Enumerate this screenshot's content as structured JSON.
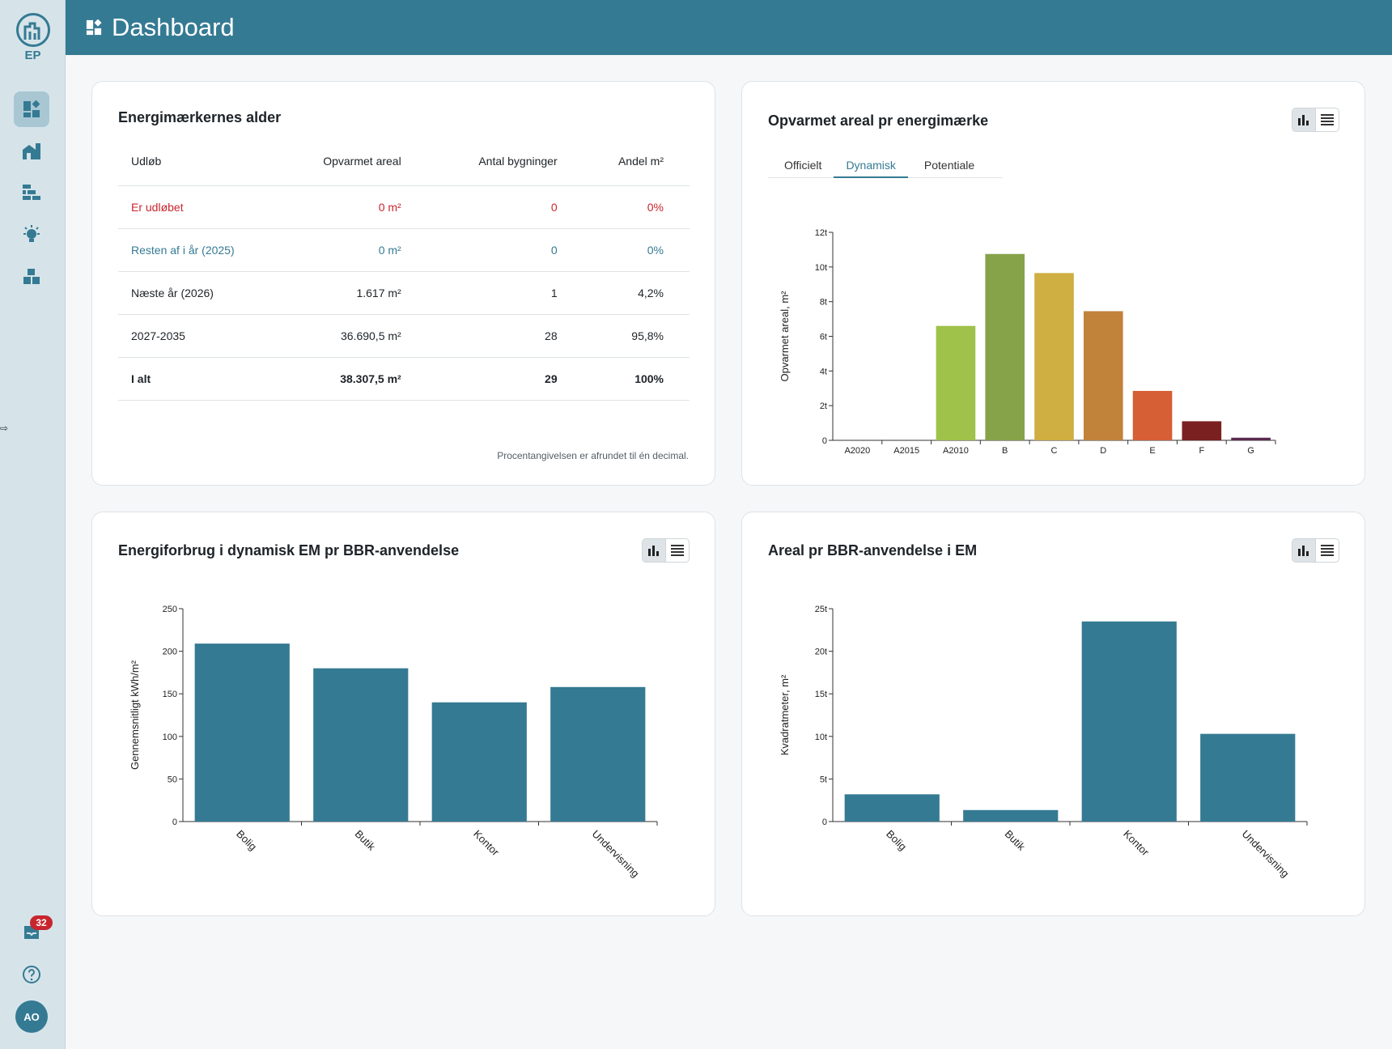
{
  "app": {
    "logo_text": "EP",
    "page_title": "Dashboard",
    "notification_count": "32",
    "user_initials": "AO"
  },
  "colors": {
    "primary": "#357a93",
    "danger": "#c8262e"
  },
  "sidebar": {
    "items": [
      {
        "icon": "dashboard-icon",
        "active": true
      },
      {
        "icon": "buildings-icon"
      },
      {
        "icon": "wall-icon"
      },
      {
        "icon": "lightbulb-icon"
      },
      {
        "icon": "blocks-icon"
      }
    ],
    "bottom": [
      {
        "icon": "inbox-icon"
      },
      {
        "icon": "help-icon"
      }
    ]
  },
  "age_card": {
    "title": "Energimærkernes alder",
    "headers": [
      "Udløb",
      "Opvarmet areal",
      "Antal bygninger",
      "Andel m²"
    ],
    "rows": [
      [
        "Er udløbet",
        "0 m²",
        "0",
        "0%"
      ],
      [
        "Resten af i år (2025)",
        "0 m²",
        "0",
        "0%"
      ],
      [
        "Næste år (2026)",
        "1.617 m²",
        "1",
        "4,2%"
      ],
      [
        "2027-2035",
        "36.690,5 m²",
        "28",
        "95,8%"
      ],
      [
        "I alt",
        "38.307,5 m²",
        "29",
        "100%"
      ]
    ],
    "note": "Procentangivelsen er afrundet til én decimal."
  },
  "energy_label_card": {
    "title": "Opvarmet areal pr energimærke",
    "tabs": [
      "Officielt",
      "Dynamisk",
      "Potentiale"
    ],
    "active_tab": "Dynamisk"
  },
  "energy_use_card": {
    "title": "Energiforbrug i dynamisk EM pr BBR-anvendelse"
  },
  "area_card": {
    "title": "Areal pr BBR-anvendelse i EM"
  },
  "chart_data": [
    {
      "type": "bar",
      "ylabel": "Opvarmet areal, m²",
      "categories": [
        "A2020",
        "A2015",
        "A2010",
        "B",
        "C",
        "D",
        "E",
        "F",
        "G"
      ],
      "values": [
        0,
        0,
        6.6,
        10.75,
        9.65,
        7.45,
        2.85,
        1.1,
        0.15
      ],
      "colors": [
        "#3a8c3a",
        "#5ea33a",
        "#9fc24a",
        "#86a34a",
        "#cfae42",
        "#c1823a",
        "#d65f35",
        "#7a2020",
        "#5a2850"
      ],
      "ylim": [
        0,
        12
      ],
      "yticks": [
        "0",
        "2t",
        "4t",
        "6t",
        "8t",
        "10t",
        "12t"
      ]
    },
    {
      "type": "bar",
      "ylabel": "Gennemsnitligt kWh/m²",
      "categories": [
        "Bolig",
        "Butik",
        "Kontor",
        "Undervisning"
      ],
      "values": [
        209,
        180,
        140,
        158
      ],
      "ylim": [
        0,
        250
      ],
      "yticks": [
        "0",
        "50",
        "100",
        "150",
        "200",
        "250"
      ]
    },
    {
      "type": "bar",
      "ylabel": "Kvadratmeter, m²",
      "categories": [
        "Bolig",
        "Butik",
        "Kontor",
        "Undervisning"
      ],
      "values": [
        3.2,
        1.35,
        23.5,
        10.3
      ],
      "ylim": [
        0,
        25
      ],
      "yticks": [
        "0",
        "5t",
        "10t",
        "15t",
        "20t",
        "25t"
      ]
    }
  ]
}
